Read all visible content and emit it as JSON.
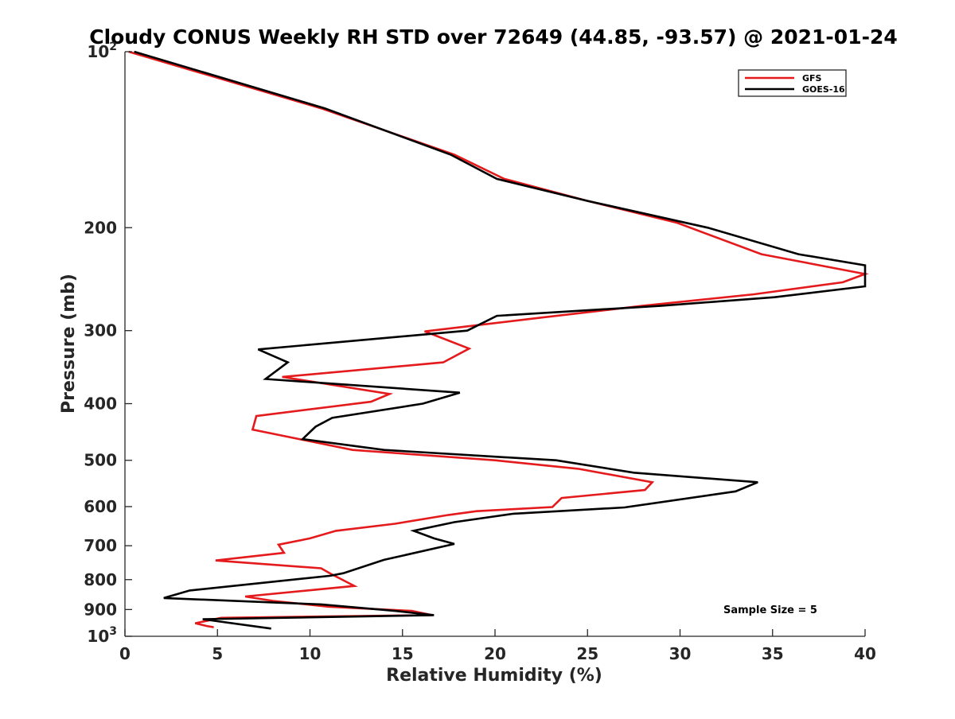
{
  "chart_data": {
    "type": "line",
    "title": "Cloudy CONUS Weekly RH STD over 72649 (44.85, -93.57) @ 2021-01-24",
    "xlabel": "Relative Humidity (%)",
    "ylabel": "Pressure (mb)",
    "xlim": [
      0,
      40
    ],
    "ylim": [
      100,
      1000
    ],
    "y_scale": "log",
    "y_reversed": true,
    "grid": false,
    "legend_position": "top-right",
    "x_ticks": [
      0,
      5,
      10,
      15,
      20,
      25,
      30,
      35,
      40
    ],
    "y_ticks": [
      {
        "value": 100,
        "base": "10",
        "exp": "2"
      },
      {
        "value": 200,
        "label": "200"
      },
      {
        "value": 300,
        "label": "300"
      },
      {
        "value": 400,
        "label": "400"
      },
      {
        "value": 500,
        "label": "500"
      },
      {
        "value": 600,
        "label": "600"
      },
      {
        "value": 700,
        "label": "700"
      },
      {
        "value": 800,
        "label": "800"
      },
      {
        "value": 900,
        "label": "900"
      },
      {
        "value": 1000,
        "base": "10",
        "exp": "3"
      }
    ],
    "series": [
      {
        "name": "GFS",
        "color": "#e41a1c",
        "points": [
          [
            0.2,
            100
          ],
          [
            10.6,
            125
          ],
          [
            17.8,
            150
          ],
          [
            20.5,
            165
          ],
          [
            25.0,
            180
          ],
          [
            29.8,
            196
          ],
          [
            34.4,
            222
          ],
          [
            40.0,
            240
          ],
          [
            38.8,
            248
          ],
          [
            34.0,
            260
          ],
          [
            28.0,
            272
          ],
          [
            22.5,
            285
          ],
          [
            16.2,
            301
          ],
          [
            16.8,
            306
          ],
          [
            18.6,
            322
          ],
          [
            17.2,
            340
          ],
          [
            8.5,
            360
          ],
          [
            14.3,
            385
          ],
          [
            13.3,
            397
          ],
          [
            7.1,
            420
          ],
          [
            6.9,
            443
          ],
          [
            12.3,
            480
          ],
          [
            20.0,
            500
          ],
          [
            24.5,
            517
          ],
          [
            28.5,
            545
          ],
          [
            28.1,
            562
          ],
          [
            23.6,
            580
          ],
          [
            23.1,
            601
          ],
          [
            19.0,
            611
          ],
          [
            17.5,
            620
          ],
          [
            14.6,
            642
          ],
          [
            11.4,
            660
          ],
          [
            10.0,
            680
          ],
          [
            8.3,
            697
          ],
          [
            8.6,
            720
          ],
          [
            4.9,
            742
          ],
          [
            10.6,
            765
          ],
          [
            11.1,
            781
          ],
          [
            12.4,
            820
          ],
          [
            6.5,
            855
          ],
          [
            8.0,
            870
          ],
          [
            11.0,
            890
          ],
          [
            15.5,
            905
          ],
          [
            16.6,
            920
          ],
          [
            5.2,
            930
          ],
          [
            3.8,
            950
          ],
          [
            4.4,
            960
          ],
          [
            4.8,
            965
          ]
        ]
      },
      {
        "name": "GOES-16",
        "color": "#000000",
        "points": [
          [
            0.5,
            100
          ],
          [
            10.8,
            125
          ],
          [
            17.6,
            150
          ],
          [
            20.1,
            165
          ],
          [
            25.0,
            180
          ],
          [
            31.5,
            200
          ],
          [
            36.4,
            222
          ],
          [
            40.0,
            232
          ],
          [
            40.0,
            252
          ],
          [
            35.1,
            263
          ],
          [
            29.0,
            272
          ],
          [
            20.1,
            283
          ],
          [
            18.5,
            300
          ],
          [
            7.2,
            323
          ],
          [
            8.8,
            340
          ],
          [
            7.6,
            363
          ],
          [
            18.1,
            383
          ],
          [
            16.1,
            400
          ],
          [
            11.2,
            423
          ],
          [
            10.3,
            438
          ],
          [
            9.6,
            460
          ],
          [
            14.0,
            480
          ],
          [
            20.0,
            493
          ],
          [
            23.3,
            500
          ],
          [
            27.5,
            525
          ],
          [
            34.2,
            545
          ],
          [
            33.0,
            565
          ],
          [
            27.0,
            602
          ],
          [
            21.0,
            617
          ],
          [
            17.8,
            638
          ],
          [
            15.6,
            660
          ],
          [
            16.7,
            680
          ],
          [
            17.8,
            695
          ],
          [
            14.0,
            740
          ],
          [
            11.8,
            780
          ],
          [
            11.1,
            788
          ],
          [
            3.5,
            835
          ],
          [
            2.1,
            860
          ],
          [
            10.6,
            882
          ],
          [
            14.6,
            905
          ],
          [
            16.7,
            920
          ],
          [
            4.2,
            935
          ],
          [
            7.9,
            970
          ]
        ]
      }
    ],
    "annotations": [
      "Sample Size = 5"
    ]
  }
}
